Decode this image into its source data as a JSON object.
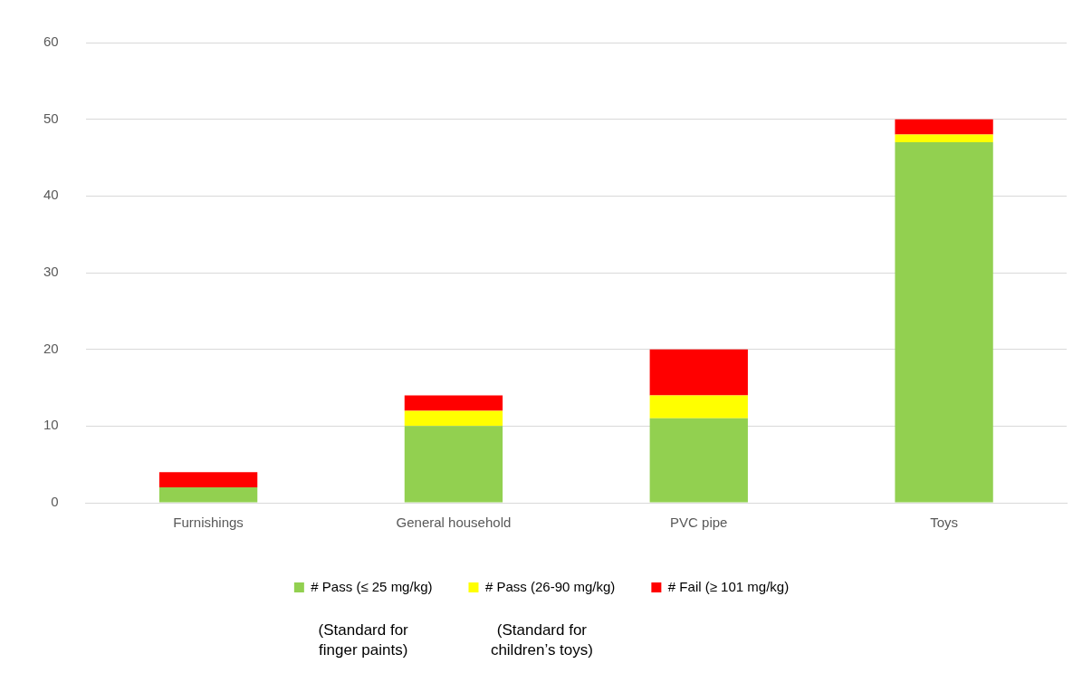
{
  "chart_data": {
    "type": "bar",
    "stacked": true,
    "categories": [
      "Furnishings",
      "General household",
      "PVC pipe",
      "Toys"
    ],
    "series": [
      {
        "name": "# Pass (≤ 25 mg/kg)",
        "color": "#92d050",
        "values": [
          2,
          10,
          11,
          47
        ]
      },
      {
        "name": "# Pass (26-90 mg/kg)",
        "color": "#ffff00",
        "values": [
          0,
          2,
          3,
          1
        ]
      },
      {
        "name": "# Fail (≥ 101 mg/kg)",
        "color": "#ff0000",
        "values": [
          2,
          2,
          6,
          2
        ]
      }
    ],
    "ylim": [
      0,
      60
    ],
    "yticks": [
      0,
      10,
      20,
      30,
      40,
      50,
      60
    ],
    "grid": "y",
    "legend": "bottom",
    "annotations": [
      "(Standard for finger paints)",
      "(Standard for children’s toys)"
    ]
  }
}
